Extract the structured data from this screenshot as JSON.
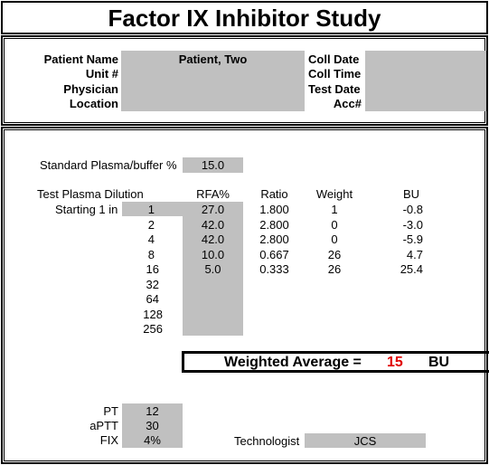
{
  "title": "Factor IX Inhibitor Study",
  "header": {
    "labels_left": [
      "Patient Name",
      "Unit #",
      "Physician",
      "Location"
    ],
    "patient_name_value": "Patient, Two",
    "labels_right": [
      "Coll Date",
      "Coll Time",
      "Test Date",
      "Acc#"
    ]
  },
  "standard": {
    "label": "Standard Plasma/buffer %",
    "value": "15.0"
  },
  "table": {
    "dilution_header": "Test Plasma Dilution",
    "starting_label": "Starting 1 in",
    "columns": [
      "RFA%",
      "Ratio",
      "Weight",
      "BU"
    ],
    "dilutions": [
      "1",
      "2",
      "4",
      "8",
      "16",
      "32",
      "64",
      "128",
      "256"
    ],
    "rows": [
      {
        "rfa": "27.0",
        "ratio": "1.800",
        "weight": "1",
        "bu": "-0.8"
      },
      {
        "rfa": "42.0",
        "ratio": "2.800",
        "weight": "0",
        "bu": "-3.0"
      },
      {
        "rfa": "42.0",
        "ratio": "2.800",
        "weight": "0",
        "bu": "-5.9"
      },
      {
        "rfa": "10.0",
        "ratio": "0.667",
        "weight": "26",
        "bu": "4.7"
      },
      {
        "rfa": "5.0",
        "ratio": "0.333",
        "weight": "26",
        "bu": "25.4"
      }
    ]
  },
  "weighted": {
    "label": "Weighted Average =",
    "value": "15",
    "unit": "BU",
    "value_color": "#e00000"
  },
  "coag": [
    {
      "label": "PT",
      "value": "12"
    },
    {
      "label": "aPTT",
      "value": "30"
    },
    {
      "label": "FIX",
      "value": "4%"
    }
  ],
  "technologist": {
    "label": "Technologist",
    "value": "JCS"
  }
}
